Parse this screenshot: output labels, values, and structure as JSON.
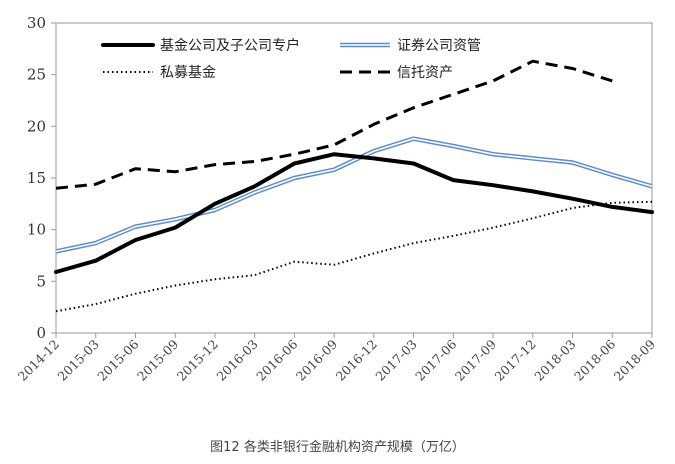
{
  "caption": "图12 各类非银行金融机构资产规模（万亿）",
  "chart_data": {
    "type": "line",
    "title": "",
    "xlabel": "",
    "ylabel": "",
    "ylim": [
      0,
      30
    ],
    "yticks": [
      "0",
      "5",
      "10",
      "15",
      "20",
      "25",
      "30"
    ],
    "grid": false,
    "legend_placement": "top",
    "categories": [
      "2014-12",
      "2015-03",
      "2015-06",
      "2015-09",
      "2015-12",
      "2016-03",
      "2016-06",
      "2016-09",
      "2016-12",
      "2017-03",
      "2017-06",
      "2017-09",
      "2017-12",
      "2018-03",
      "2018-06",
      "2018-09"
    ],
    "series": [
      {
        "name": "基金公司及子公司专户",
        "style": "thick-solid",
        "color": "#000000",
        "values": [
          5.9,
          7.0,
          9.0,
          10.2,
          12.5,
          14.2,
          16.4,
          17.3,
          16.9,
          16.4,
          14.8,
          14.3,
          13.7,
          13.0,
          12.2,
          11.7
        ]
      },
      {
        "name": "证券公司资管",
        "style": "double-blue",
        "color": "#5b8ccc",
        "values": [
          7.9,
          8.7,
          10.3,
          11.0,
          11.9,
          13.6,
          15.0,
          15.8,
          17.6,
          18.8,
          18.1,
          17.3,
          16.9,
          16.5,
          15.3,
          14.2
        ]
      },
      {
        "name": "私募基金",
        "style": "dotted",
        "color": "#000000",
        "values": [
          2.1,
          2.8,
          3.8,
          4.6,
          5.2,
          5.6,
          6.9,
          6.6,
          7.7,
          8.7,
          9.4,
          10.2,
          11.1,
          12.1,
          12.6,
          12.7
        ]
      },
      {
        "name": "信托资产",
        "style": "dashed",
        "color": "#000000",
        "values": [
          14.0,
          14.4,
          15.9,
          15.6,
          16.3,
          16.6,
          17.3,
          18.2,
          20.2,
          21.8,
          23.1,
          24.4,
          26.3,
          25.6,
          24.4,
          null
        ]
      }
    ]
  }
}
